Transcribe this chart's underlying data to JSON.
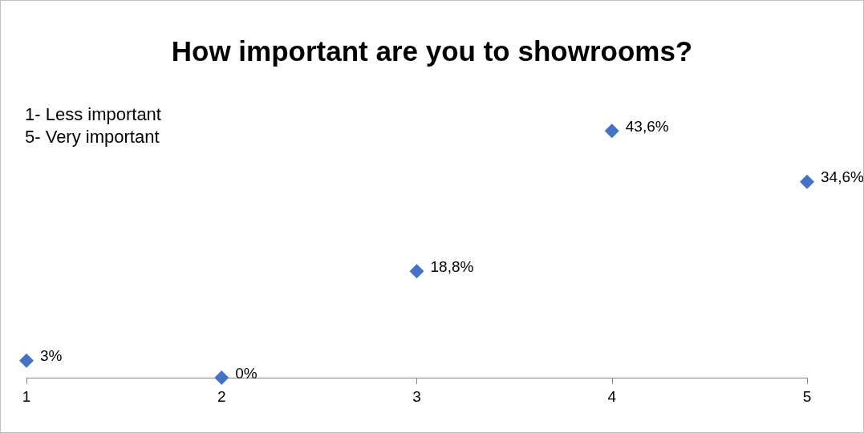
{
  "chart_data": {
    "type": "scatter",
    "title": "How important are you to showrooms?",
    "annotations": [
      "1- Less important",
      "5- Very important"
    ],
    "x": [
      1,
      2,
      3,
      4,
      5
    ],
    "series": [
      {
        "color": "#4472c4",
        "values": [
          3,
          0,
          18.8,
          43.6,
          34.6
        ],
        "value_labels": [
          "3%",
          "0%",
          "18,8%",
          "43,6%",
          "34,6%"
        ]
      }
    ],
    "xlim": [
      1,
      5
    ],
    "xticks": [
      1,
      2,
      3,
      4,
      5
    ],
    "marker": "diamond",
    "grid": false,
    "tick_labels": "x"
  }
}
